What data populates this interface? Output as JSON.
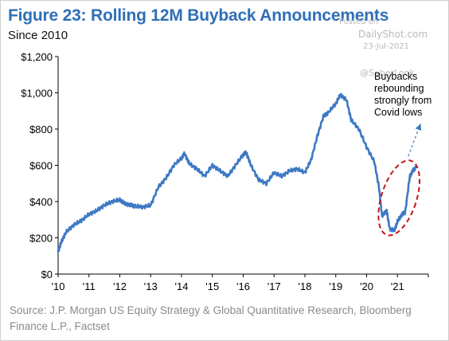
{
  "header": {
    "title": "Figure 23: Rolling 12M Buyback Announcements",
    "subtitle": "Since 2010"
  },
  "watermark": {
    "posted": "Posted on",
    "site": "DailyShot.com",
    "date": "23-Jul-2021",
    "handle": "@SoberLook"
  },
  "annotation": {
    "lines": [
      "Buybacks",
      "rebounding",
      "strongly from",
      "Covid lows"
    ]
  },
  "source": "Source: J.P. Morgan US Equity Strategy & Global Quantitative Research, Bloomberg Finance L.P., Factset",
  "colors": {
    "title": "#2f6fb7",
    "line": "#3d78c4",
    "highlight": "#c0141b",
    "arrow": "#3d78c4"
  },
  "chart_data": {
    "type": "line",
    "title": "Figure 23: Rolling 12M Buyback Announcements",
    "subtitle": "Since 2010",
    "xlabel": "",
    "ylabel": "",
    "xlim": [
      2010,
      2022
    ],
    "ylim": [
      0,
      1200
    ],
    "yticks": [
      0,
      200,
      400,
      600,
      800,
      1000,
      1200
    ],
    "ytick_labels": [
      "$0",
      "$200",
      "$400",
      "$600",
      "$800",
      "$1,000",
      "$1,200"
    ],
    "xticks": [
      2010,
      2011,
      2012,
      2013,
      2014,
      2015,
      2016,
      2017,
      2018,
      2019,
      2020,
      2021
    ],
    "xtick_labels": [
      "'10",
      "'11",
      "'12",
      "'13",
      "'14",
      "'15",
      "'16",
      "'17",
      "'18",
      "'19",
      "'20",
      "'21"
    ],
    "grid": false,
    "series": [
      {
        "x": [
          2010.0,
          2010.1,
          2010.25,
          2010.5,
          2010.75,
          2011.0,
          2011.25,
          2011.5,
          2011.75,
          2012.0,
          2012.15,
          2012.35,
          2012.5,
          2012.75,
          2013.0,
          2013.25,
          2013.5,
          2013.75,
          2014.0,
          2014.1,
          2014.25,
          2014.5,
          2014.75,
          2015.0,
          2015.25,
          2015.5,
          2015.75,
          2016.0,
          2016.1,
          2016.25,
          2016.5,
          2016.75,
          2017.0,
          2017.25,
          2017.5,
          2017.75,
          2018.0,
          2018.2,
          2018.4,
          2018.6,
          2018.75,
          2019.0,
          2019.15,
          2019.35,
          2019.5,
          2019.75,
          2020.0,
          2020.25,
          2020.4,
          2020.5,
          2020.65,
          2020.75,
          2020.9,
          2021.0,
          2021.15,
          2021.25,
          2021.4,
          2021.5,
          2021.6
        ],
        "y": [
          125,
          175,
          230,
          270,
          295,
          330,
          350,
          380,
          400,
          410,
          390,
          380,
          375,
          370,
          380,
          480,
          530,
          600,
          640,
          665,
          610,
          580,
          540,
          600,
          570,
          540,
          600,
          660,
          670,
          600,
          520,
          500,
          560,
          540,
          570,
          580,
          560,
          630,
          760,
          870,
          890,
          940,
          990,
          960,
          850,
          800,
          700,
          620,
          480,
          320,
          350,
          250,
          240,
          290,
          330,
          340,
          540,
          570,
          590
        ]
      }
    ]
  }
}
